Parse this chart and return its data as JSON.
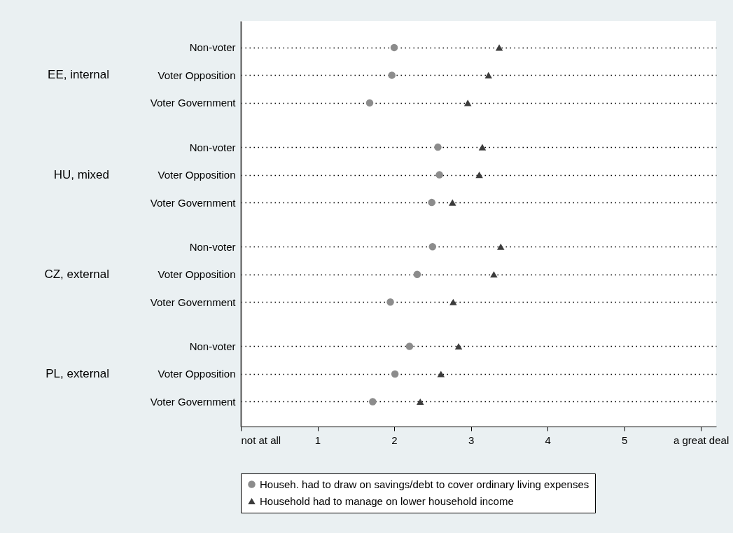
{
  "chart_data": {
    "type": "scatter",
    "categories": [
      "Non-voter",
      "Voter Opposition",
      "Voter Government",
      "Non-voter",
      "Voter Opposition",
      "Voter Government",
      "Non-voter",
      "Voter Opposition",
      "Voter Government",
      "Non-voter",
      "Voter Opposition",
      "Voter Government"
    ],
    "annotations": [
      "EE, internal",
      "HU, mixed",
      "CZ, external",
      "PL, external"
    ],
    "series": [
      {
        "name": "Househ. had to draw on savings/debt to cover ordinary living expenses",
        "color": "#8c8c8c",
        "marker": "circle",
        "values": [
          2.0,
          1.97,
          1.68,
          2.57,
          2.59,
          2.49,
          2.5,
          2.3,
          1.95,
          2.2,
          2.01,
          1.72
        ]
      },
      {
        "name": "Household had to manage on lower household income",
        "color": "#3c3c3c",
        "marker": "triangle",
        "values": [
          3.37,
          3.23,
          2.96,
          3.15,
          3.11,
          2.76,
          3.39,
          3.3,
          2.77,
          2.84,
          2.61,
          2.34
        ]
      }
    ],
    "orientation": "horizontal",
    "xlim": [
      0,
      6.2
    ],
    "xticks": [
      {
        "value": 0,
        "label": "not at all"
      },
      1,
      2,
      3,
      4,
      5,
      {
        "value": 6,
        "label": "a great deal"
      }
    ],
    "grid": "y",
    "legend": "bottom"
  }
}
